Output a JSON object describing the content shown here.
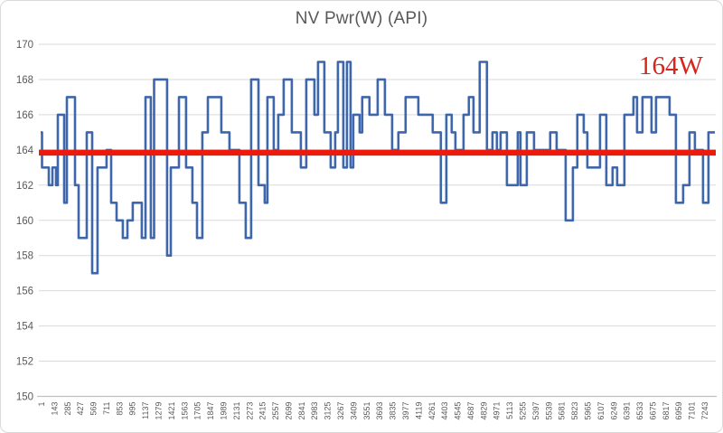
{
  "title": "NV Pwr(W) (API)",
  "annotation": {
    "text": "164W",
    "color": "#d8251c"
  },
  "colors": {
    "series_blue": "#3e66ac",
    "reference_red": "#ed1a0c",
    "grid": "#d9d9d9",
    "axis_line": "#bfbfbf",
    "axis_text": "#595959",
    "frame_border": "#d9d9d9",
    "background": "#ffffff"
  },
  "chart_data": {
    "type": "line",
    "subtype": "step",
    "title": "NV Pwr(W) (API)",
    "xlabel": "",
    "ylabel": "",
    "grid": true,
    "legend_position": "none",
    "ylim": [
      150,
      170
    ],
    "ytick_interval": 2,
    "yticks": [
      150,
      152,
      154,
      156,
      158,
      160,
      162,
      164,
      166,
      168,
      170
    ],
    "x_range": [
      1,
      7385
    ],
    "xtick_labels": [
      "1",
      "143",
      "285",
      "427",
      "569",
      "711",
      "853",
      "995",
      "1137",
      "1279",
      "1421",
      "1563",
      "1705",
      "1847",
      "1989",
      "2131",
      "2273",
      "2415",
      "2557",
      "2699",
      "2841",
      "2983",
      "3125",
      "3267",
      "3409",
      "3551",
      "3693",
      "3835",
      "3977",
      "4119",
      "4261",
      "4403",
      "4545",
      "4687",
      "4829",
      "4971",
      "5113",
      "5255",
      "5397",
      "5539",
      "5681",
      "5823",
      "5965",
      "6107",
      "6249",
      "6391",
      "6533",
      "6675",
      "6817",
      "6959",
      "7101",
      "7243"
    ],
    "reference_line": {
      "value": 164,
      "label": "164W",
      "color": "#ed1a0c"
    },
    "series": [
      {
        "name": "NV Pwr(W)",
        "color": "#3e66ac",
        "unit": "W",
        "points": [
          [
            1,
            165
          ],
          [
            16,
            163
          ],
          [
            90,
            162
          ],
          [
            130,
            163
          ],
          [
            169,
            162
          ],
          [
            189,
            166
          ],
          [
            258,
            161
          ],
          [
            288,
            167
          ],
          [
            377,
            162
          ],
          [
            417,
            159
          ],
          [
            506,
            165
          ],
          [
            565,
            157
          ],
          [
            624,
            163
          ],
          [
            723,
            164
          ],
          [
            773,
            161
          ],
          [
            832,
            160
          ],
          [
            901,
            159
          ],
          [
            951,
            160
          ],
          [
            1010,
            161
          ],
          [
            1109,
            159
          ],
          [
            1149,
            167
          ],
          [
            1208,
            159
          ],
          [
            1243,
            168
          ],
          [
            1386,
            158
          ],
          [
            1426,
            163
          ],
          [
            1515,
            167
          ],
          [
            1594,
            163
          ],
          [
            1663,
            161
          ],
          [
            1713,
            159
          ],
          [
            1772,
            165
          ],
          [
            1832,
            167
          ],
          [
            1980,
            165
          ],
          [
            2069,
            164
          ],
          [
            2178,
            161
          ],
          [
            2247,
            159
          ],
          [
            2306,
            168
          ],
          [
            2386,
            162
          ],
          [
            2455,
            161
          ],
          [
            2484,
            167
          ],
          [
            2554,
            164
          ],
          [
            2603,
            166
          ],
          [
            2663,
            168
          ],
          [
            2752,
            165
          ],
          [
            2851,
            163
          ],
          [
            2910,
            168
          ],
          [
            2999,
            166
          ],
          [
            3039,
            169
          ],
          [
            3108,
            165
          ],
          [
            3177,
            163
          ],
          [
            3227,
            165
          ],
          [
            3256,
            169
          ],
          [
            3316,
            163
          ],
          [
            3355,
            169
          ],
          [
            3395,
            163
          ],
          [
            3425,
            166
          ],
          [
            3494,
            165
          ],
          [
            3523,
            167
          ],
          [
            3602,
            166
          ],
          [
            3692,
            168
          ],
          [
            3771,
            166
          ],
          [
            3850,
            164
          ],
          [
            3919,
            165
          ],
          [
            3998,
            167
          ],
          [
            4137,
            166
          ],
          [
            4295,
            165
          ],
          [
            4384,
            161
          ],
          [
            4444,
            166
          ],
          [
            4503,
            165
          ],
          [
            4543,
            164
          ],
          [
            4632,
            166
          ],
          [
            4691,
            167
          ],
          [
            4741,
            165
          ],
          [
            4810,
            169
          ],
          [
            4889,
            164
          ],
          [
            4949,
            165
          ],
          [
            4998,
            164
          ],
          [
            5038,
            165
          ],
          [
            5107,
            162
          ],
          [
            5226,
            165
          ],
          [
            5256,
            162
          ],
          [
            5325,
            165
          ],
          [
            5404,
            164
          ],
          [
            5582,
            165
          ],
          [
            5652,
            164
          ],
          [
            5751,
            160
          ],
          [
            5830,
            163
          ],
          [
            5879,
            166
          ],
          [
            5949,
            165
          ],
          [
            5988,
            163
          ],
          [
            6127,
            166
          ],
          [
            6196,
            162
          ],
          [
            6265,
            163
          ],
          [
            6315,
            162
          ],
          [
            6394,
            166
          ],
          [
            6493,
            167
          ],
          [
            6533,
            165
          ],
          [
            6592,
            167
          ],
          [
            6691,
            165
          ],
          [
            6741,
            167
          ],
          [
            6889,
            166
          ],
          [
            6958,
            161
          ],
          [
            7038,
            162
          ],
          [
            7107,
            165
          ],
          [
            7166,
            164
          ],
          [
            7255,
            161
          ],
          [
            7315,
            165
          ]
        ]
      }
    ]
  }
}
